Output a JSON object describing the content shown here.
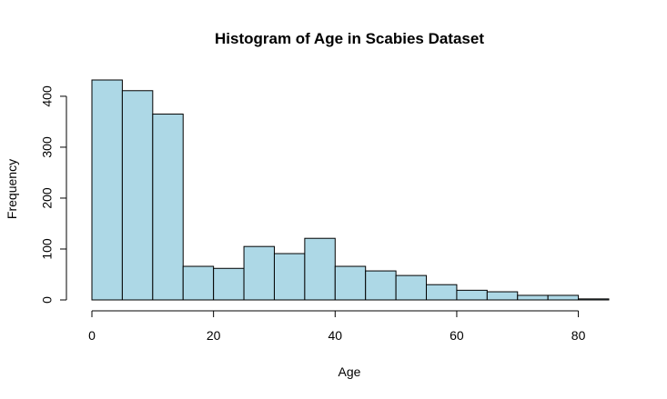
{
  "chart_data": {
    "type": "bar",
    "title": "Histogram of Age in Scabies Dataset",
    "xlabel": "Age",
    "ylabel": "Frequency",
    "bins": [
      [
        0,
        5
      ],
      [
        5,
        10
      ],
      [
        10,
        15
      ],
      [
        15,
        20
      ],
      [
        20,
        25
      ],
      [
        25,
        30
      ],
      [
        30,
        35
      ],
      [
        35,
        40
      ],
      [
        40,
        45
      ],
      [
        45,
        50
      ],
      [
        50,
        55
      ],
      [
        55,
        60
      ],
      [
        60,
        65
      ],
      [
        65,
        70
      ],
      [
        70,
        75
      ],
      [
        75,
        80
      ],
      [
        80,
        85
      ]
    ],
    "values": [
      432,
      411,
      365,
      66,
      62,
      105,
      91,
      121,
      66,
      57,
      48,
      30,
      19,
      16,
      9,
      9,
      2
    ],
    "xlim": [
      0,
      85
    ],
    "ylim": [
      0,
      432
    ],
    "xticks": [
      0,
      20,
      40,
      60,
      80
    ],
    "yticks": [
      0,
      100,
      200,
      300,
      400
    ],
    "grid": false,
    "colors": {
      "bar_fill": "#ADD8E6",
      "bar_stroke": "#000000",
      "axis": "#000000",
      "background": "#FFFFFF"
    }
  }
}
